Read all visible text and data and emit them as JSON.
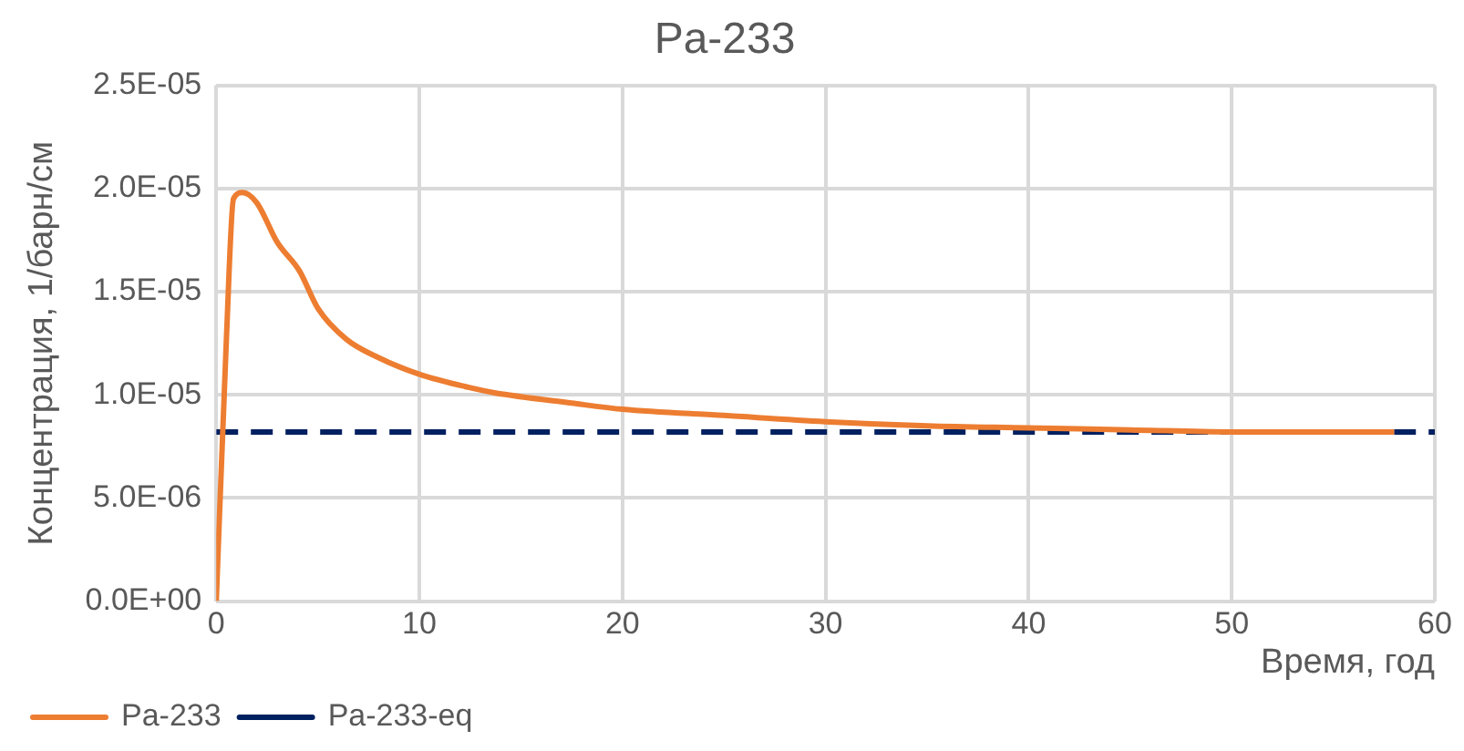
{
  "chart_data": {
    "type": "line",
    "title": "Pa-233",
    "xlabel": "Время, год",
    "ylabel": "Концентрация, 1/барн/см",
    "series": [
      {
        "name": "Pa-233",
        "color": "#ed7d31",
        "x": [
          0,
          0.5,
          0.85,
          1.3,
          2,
          3,
          4.1,
          5,
          6.4,
          8,
          10,
          12.7,
          13.7,
          17.5,
          20,
          25,
          30,
          35,
          40,
          45,
          50,
          55,
          58
        ],
        "values": [
          0,
          1.27e-05,
          1.95e-05,
          1.98e-05,
          1.93e-05,
          1.74e-05,
          1.6e-05,
          1.42e-05,
          1.27e-05,
          1.18e-05,
          1.1e-05,
          1.03e-05,
          1.01e-05,
          9.6e-06,
          9.3e-06,
          9e-06,
          8.7e-06,
          8.5e-06,
          8.4e-06,
          8.3e-06,
          8.2e-06,
          8.2e-06,
          8.2e-06
        ],
        "line_style": "solid"
      },
      {
        "name": "Pa-233-eq",
        "color": "#002060",
        "x": [
          0,
          60
        ],
        "values": [
          8.2e-06,
          8.2e-06
        ],
        "line_style": "dashed"
      }
    ],
    "xlim": [
      0,
      60
    ],
    "xticks": [
      0,
      10,
      20,
      30,
      40,
      50,
      60
    ],
    "ylim": [
      0,
      2.5e-05
    ],
    "yticks": [
      {
        "value": 0,
        "label": "0.0E+00"
      },
      {
        "value": 5e-06,
        "label": "5.0E-06"
      },
      {
        "value": 1e-05,
        "label": "1.0E-05"
      },
      {
        "value": 1.5e-05,
        "label": "1.5E-05"
      },
      {
        "value": 2e-05,
        "label": "2.0E-05"
      },
      {
        "value": 2.5e-05,
        "label": "2.5E-05"
      }
    ],
    "grid": true,
    "legend": "bottom left",
    "marker": "none"
  }
}
